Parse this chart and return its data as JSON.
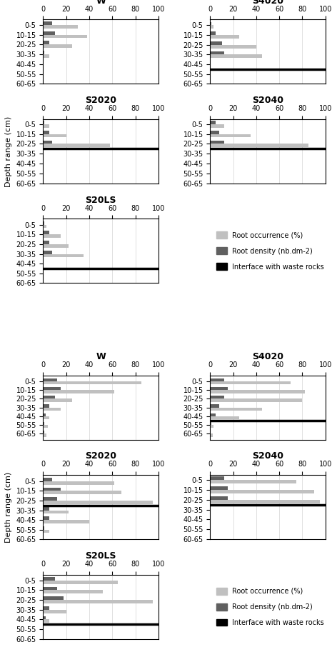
{
  "depth_labels": [
    "0-5",
    "10-15",
    "20-25",
    "30-35",
    "40-45",
    "50-55",
    "60-65"
  ],
  "color_occurrence": "#c0c0c0",
  "color_density": "#606060",
  "color_interface": "#000000",
  "top_section": {
    "W": {
      "occurrence": [
        30,
        38,
        25,
        5,
        0,
        0,
        0
      ],
      "density": [
        8,
        10,
        5,
        1,
        0,
        0,
        0
      ],
      "interface_after": null
    },
    "S4020": {
      "occurrence": [
        3,
        25,
        40,
        45,
        0,
        0,
        0
      ],
      "density": [
        1,
        5,
        10,
        12,
        0,
        0,
        0
      ],
      "interface_after": "40-45"
    },
    "S2020": {
      "occurrence": [
        5,
        20,
        58,
        0,
        0,
        0,
        0
      ],
      "density": [
        1,
        5,
        8,
        0,
        0,
        0,
        0
      ],
      "interface_after": "20-25"
    },
    "S2040": {
      "occurrence": [
        12,
        35,
        85,
        0,
        0,
        0,
        0
      ],
      "density": [
        5,
        8,
        12,
        0,
        0,
        0,
        0
      ],
      "interface_after": "20-25"
    },
    "S20LS": {
      "occurrence": [
        3,
        15,
        22,
        35,
        0,
        0,
        0
      ],
      "density": [
        1,
        5,
        5,
        8,
        0,
        0,
        0
      ],
      "interface_after": "40-45"
    }
  },
  "bottom_section": {
    "W": {
      "occurrence": [
        85,
        62,
        25,
        15,
        5,
        4,
        3
      ],
      "density": [
        12,
        15,
        10,
        5,
        2,
        1,
        1
      ],
      "interface_after": null
    },
    "S4020": {
      "occurrence": [
        70,
        82,
        80,
        45,
        25,
        3,
        2
      ],
      "density": [
        12,
        15,
        12,
        8,
        5,
        1,
        0
      ],
      "interface_after": "40-45"
    },
    "S2020": {
      "occurrence": [
        62,
        68,
        95,
        22,
        40,
        5,
        0
      ],
      "density": [
        8,
        15,
        12,
        5,
        5,
        1,
        0
      ],
      "interface_after": "20-25"
    },
    "S2040": {
      "occurrence": [
        75,
        90,
        95,
        0,
        0,
        0,
        0
      ],
      "density": [
        12,
        15,
        15,
        0,
        0,
        0,
        0
      ],
      "interface_after": "20-25"
    },
    "S20LS": {
      "occurrence": [
        65,
        52,
        95,
        20,
        5,
        0,
        0
      ],
      "density": [
        10,
        12,
        18,
        5,
        2,
        0,
        0
      ],
      "interface_after": "40-45"
    }
  },
  "xlim": [
    0,
    100
  ],
  "xticks": [
    0,
    20,
    40,
    60,
    80,
    100
  ],
  "legend_labels": [
    "Root occurrence (%)",
    "Root density (nb.dm-2)",
    "Interface with waste rocks"
  ],
  "ylabel": "Depth range (cm)"
}
